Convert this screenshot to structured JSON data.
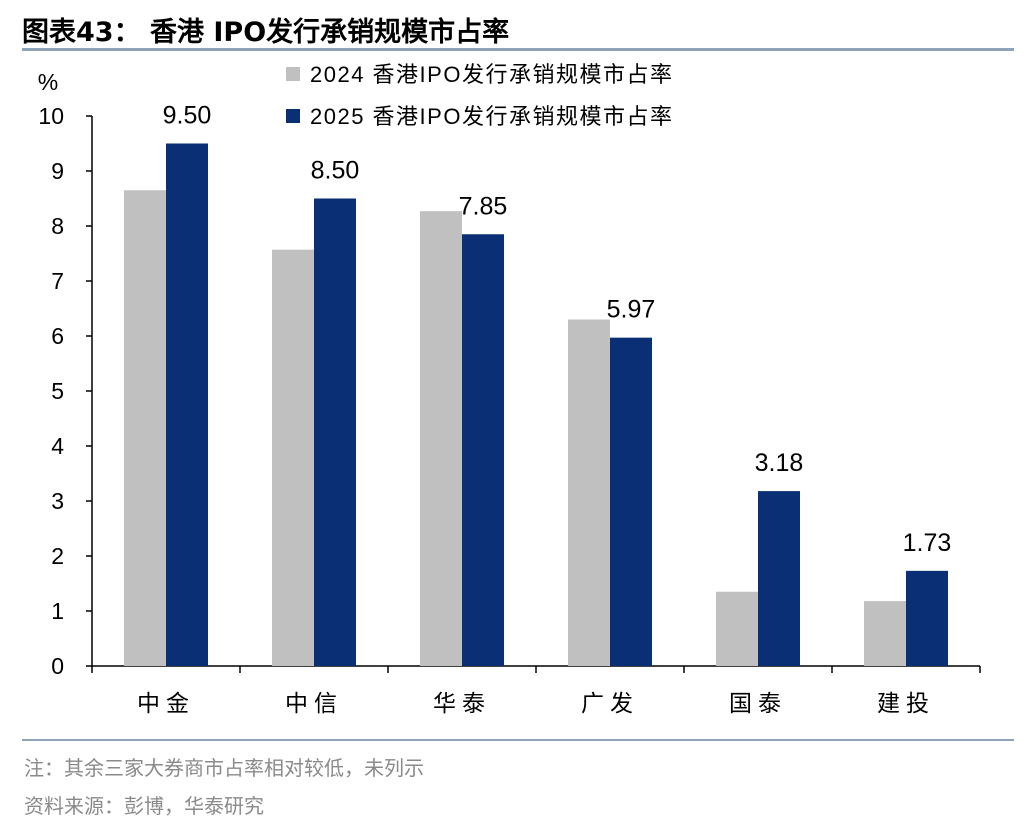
{
  "title": "图表43：  香港 IPO发行承销规模市占率",
  "note": "注：其余三家大券商市占率相对较低，未列示",
  "source": "资料来源：彭博，华泰研究",
  "colors": {
    "series_2024": "#c0c0c0",
    "series_2025": "#0a2f74",
    "rule": "#8fa3b8"
  },
  "chart_data": {
    "type": "bar",
    "ylabel": "%",
    "ylim": [
      0,
      10
    ],
    "yticks": [
      "0",
      "1",
      "2",
      "3",
      "4",
      "5",
      "6",
      "7",
      "8",
      "9",
      "10"
    ],
    "categories": [
      "中金",
      "中信",
      "华泰",
      "广发",
      "国泰",
      "建投"
    ],
    "legend_position": "top-center",
    "grid": false,
    "series": [
      {
        "name": "2024 香港IPO发行承销规模市占率",
        "values": [
          8.65,
          7.57,
          8.27,
          6.3,
          1.35,
          1.18
        ],
        "labels": []
      },
      {
        "name": "2025 香港IPO发行承销规模市占率",
        "values": [
          9.5,
          8.5,
          7.85,
          5.97,
          3.18,
          1.73
        ],
        "labels": [
          "9.50",
          "8.50",
          "7.85",
          "5.97",
          "3.18",
          "1.73"
        ]
      }
    ]
  }
}
